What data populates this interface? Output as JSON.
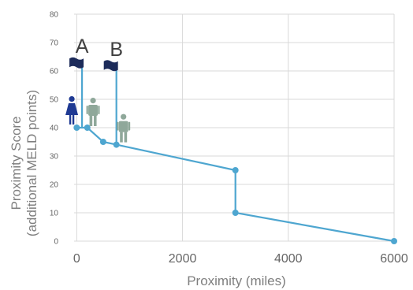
{
  "chart_data": {
    "type": "line",
    "title": "",
    "xlabel": "Proximity (miles)",
    "ylabel": "Proximity Score (additional MELD points)",
    "ylabel_lines": [
      "Proximity Score",
      "(additional MELD points)"
    ],
    "xlim": [
      -50,
      6000
    ],
    "ylim": [
      0,
      80
    ],
    "xticks": [
      0,
      2000,
      4000,
      6000
    ],
    "yticks": [
      0,
      10,
      20,
      30,
      40,
      50,
      60,
      70,
      80
    ],
    "grid": true,
    "legend": "none",
    "series": [
      {
        "color": "#4ea6d0",
        "x": [
          0,
          200,
          500,
          750,
          3000,
          3000,
          6000
        ],
        "y": [
          40,
          40,
          35,
          34,
          25,
          10,
          0
        ]
      }
    ],
    "annotations": [
      {
        "label": "A",
        "x": 100,
        "y": 40,
        "flag_y": 63,
        "recipient_icon": "female-person-icon",
        "donor_icon": "person-icon",
        "donor_color": "#8fa89a",
        "recipient_color": "#1f3a93",
        "flag_color": "#1c2b5a",
        "pole_color": "#4ea6d0"
      },
      {
        "label": "B",
        "x": 750,
        "y": 34,
        "flag_y": 62,
        "donor_icon": "person-icon",
        "donor_color": "#8fa89a",
        "flag_color": "#1c2b5a",
        "pole_color": "#4ea6d0"
      }
    ]
  }
}
